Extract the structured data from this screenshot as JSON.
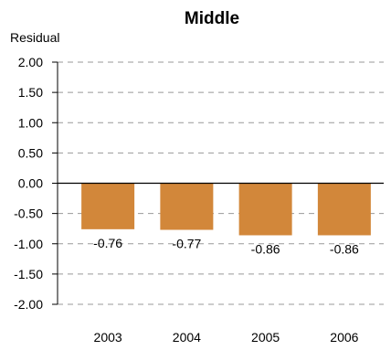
{
  "chart_data": {
    "type": "bar",
    "title": "Middle",
    "ylabel": "Residual",
    "xlabel": "",
    "categories": [
      "2003",
      "2004",
      "2005",
      "2006"
    ],
    "values": [
      -0.76,
      -0.77,
      -0.86,
      -0.86
    ],
    "data_labels": [
      "-0.76",
      "-0.77",
      "-0.86",
      "-0.86"
    ],
    "ylim": [
      -2.0,
      2.0
    ],
    "yticks": [
      2.0,
      1.5,
      1.0,
      0.5,
      0.0,
      -0.5,
      -1.0,
      -1.5,
      -2.0
    ],
    "ytick_labels": [
      "2.00",
      "1.50",
      "1.00",
      "0.50",
      "0.00",
      "-0.50",
      "-1.00",
      "-1.50",
      "-2.00"
    ],
    "grid": true,
    "grid_style": "dashed",
    "legend": "none",
    "colors": {
      "bar": "#D2873A",
      "grid": "#999999",
      "zero_line": "#000000"
    }
  }
}
